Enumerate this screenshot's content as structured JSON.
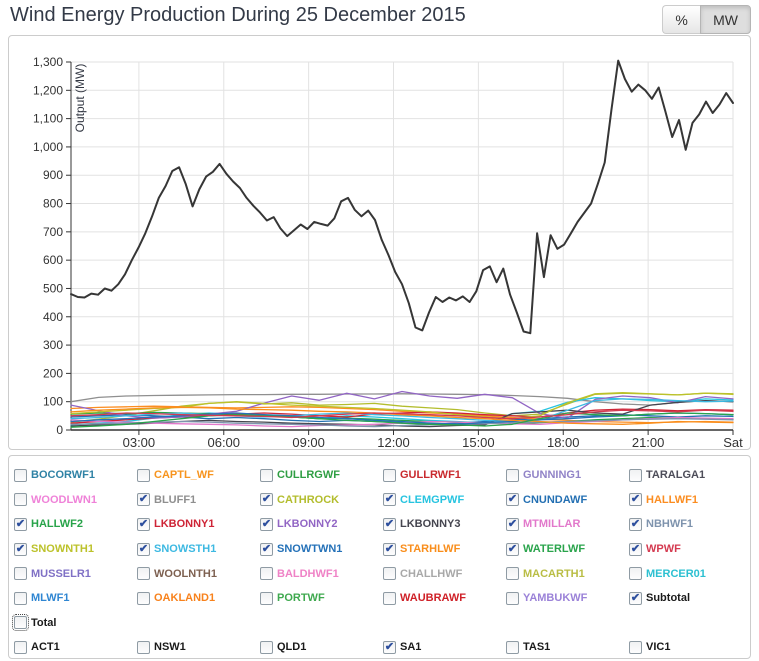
{
  "header": {
    "title": "Wind Energy Production During 25 December 2015",
    "unit_toggle": [
      {
        "label": "%",
        "active": false
      },
      {
        "label": "MW",
        "active": true
      }
    ]
  },
  "chart_data": {
    "type": "line",
    "title": "Wind Energy Production During 25 December 2015",
    "xlabel": "",
    "ylabel": "Output (MW)",
    "x_domain": [
      0.6,
      24.0
    ],
    "ylim": [
      0,
      1300
    ],
    "grid": true,
    "legend_position": "bottom-checkbox-grid",
    "colors": {
      "grid": "#e2e2e2",
      "axis": "#333333",
      "tick_label": "#333333",
      "axis_title": "#333843"
    },
    "x_ticks": [
      {
        "t": 3,
        "label": "03:00"
      },
      {
        "t": 6,
        "label": "06:00"
      },
      {
        "t": 9,
        "label": "09:00"
      },
      {
        "t": 12,
        "label": "12:00"
      },
      {
        "t": 15,
        "label": "15:00"
      },
      {
        "t": 18,
        "label": "18:00"
      },
      {
        "t": 21,
        "label": "21:00"
      },
      {
        "t": 24,
        "label": "Sat"
      }
    ],
    "y_tick_labels": [
      "0",
      "100",
      "200",
      "300",
      "400",
      "500",
      "600",
      "700",
      "800",
      "900",
      "1,000",
      "1,100",
      "1,200",
      "1,300"
    ],
    "series": [
      {
        "name": "BLUFF1",
        "color": "#8f8f8f",
        "width": 1.3,
        "values": [
          100,
          115,
          120,
          122,
          123,
          124,
          125,
          125,
          126,
          126,
          127,
          127,
          128,
          127,
          126,
          125,
          122,
          118,
          112,
          100,
          92,
          88,
          97,
          104,
          100
        ]
      },
      {
        "name": "CATHROCK",
        "color": "#b3bd2d",
        "width": 1.3,
        "values": [
          28,
          38,
          52,
          68,
          84,
          94,
          99,
          92,
          96,
          88,
          90,
          94,
          84,
          78,
          72,
          60,
          50,
          56,
          92,
          126,
          130,
          127,
          124,
          130,
          128
        ]
      },
      {
        "name": "CLEMGPWF",
        "color": "#27c4e0",
        "width": 1.3,
        "values": [
          18,
          24,
          30,
          42,
          54,
          60,
          56,
          50,
          46,
          40,
          50,
          46,
          40,
          34,
          30,
          24,
          58,
          66,
          98,
          114,
          110,
          104,
          100,
          110,
          106
        ]
      },
      {
        "name": "CNUNDAWF",
        "color": "#2470b3",
        "width": 1.3,
        "values": [
          46,
          50,
          54,
          50,
          46,
          40,
          44,
          40,
          34,
          30,
          34,
          30,
          26,
          20,
          24,
          30,
          36,
          40,
          46,
          50,
          54,
          50,
          46,
          50,
          48
        ]
      },
      {
        "name": "HALLWF1",
        "color": "#fb8d21",
        "width": 1.3,
        "values": [
          76,
          80,
          82,
          84,
          82,
          80,
          78,
          80,
          82,
          80,
          76,
          72,
          66,
          60,
          56,
          50,
          44,
          38,
          34,
          30,
          28,
          26,
          28,
          30,
          28
        ]
      },
      {
        "name": "HALLWF2",
        "color": "#27a349",
        "width": 1.3,
        "values": [
          56,
          60,
          58,
          62,
          60,
          58,
          54,
          50,
          46,
          40,
          42,
          38,
          34,
          30,
          28,
          24,
          22,
          26,
          30,
          36,
          40,
          44,
          42,
          40,
          38
        ]
      },
      {
        "name": "LKBONNY1",
        "color": "#ce2436",
        "width": 1.3,
        "values": [
          24,
          30,
          36,
          42,
          46,
          50,
          56,
          60,
          56,
          50,
          46,
          56,
          60,
          64,
          60,
          54,
          50,
          46,
          60,
          70,
          74,
          72,
          68,
          72,
          70
        ]
      },
      {
        "name": "LKBONNY2",
        "color": "#9165c4",
        "width": 1.3,
        "values": [
          88,
          68,
          50,
          42,
          46,
          56,
          66,
          95,
          120,
          105,
          130,
          110,
          136,
          120,
          112,
          126,
          114,
          58,
          42,
          108,
          120,
          114,
          96,
          118,
          110
        ]
      },
      {
        "name": "LKBONNY3",
        "color": "#45454f",
        "width": 1.3,
        "values": [
          14,
          18,
          20,
          24,
          30,
          34,
          30,
          28,
          24,
          22,
          20,
          18,
          14,
          12,
          16,
          18,
          58,
          64,
          70,
          60,
          56,
          88,
          98,
          104,
          100
        ]
      },
      {
        "name": "MTMILLAR",
        "color": "#e278cb",
        "width": 1.3,
        "values": [
          36,
          30,
          28,
          24,
          22,
          20,
          18,
          14,
          12,
          16,
          18,
          20,
          24,
          30,
          28,
          24,
          22,
          20,
          26,
          30,
          36,
          40,
          44,
          42,
          40
        ]
      },
      {
        "name": "NBHWF1",
        "color": "#7e93ad",
        "width": 1.3,
        "values": [
          20,
          22,
          24,
          28,
          30,
          28,
          24,
          22,
          20,
          18,
          14,
          12,
          16,
          18,
          20,
          22,
          26,
          28,
          30,
          32,
          36,
          38,
          40,
          38,
          36
        ]
      },
      {
        "name": "SNOWNTH1",
        "color": "#bcc22b",
        "width": 1.3,
        "values": [
          58,
          64,
          70,
          76,
          80,
          94,
          100,
          94,
          88,
          84,
          80,
          76,
          70,
          64,
          54,
          46,
          40,
          50,
          96,
          128,
          132,
          128,
          124,
          130,
          126
        ]
      },
      {
        "name": "SNOWSTH1",
        "color": "#3db9e2",
        "width": 1.3,
        "values": [
          40,
          44,
          50,
          56,
          60,
          54,
          50,
          46,
          50,
          56,
          60,
          54,
          50,
          44,
          40,
          34,
          30,
          36,
          70,
          104,
          110,
          108,
          104,
          100,
          102
        ]
      },
      {
        "name": "SNOWTWN1",
        "color": "#2471b8",
        "width": 1.3,
        "values": [
          30,
          36,
          40,
          46,
          50,
          56,
          60,
          54,
          50,
          44,
          40,
          34,
          30,
          24,
          20,
          26,
          30,
          36,
          40,
          46,
          50,
          56,
          60,
          58,
          54
        ]
      },
      {
        "name": "STARHLWF",
        "color": "#f98e1c",
        "width": 1.3,
        "values": [
          64,
          70,
          74,
          78,
          80,
          78,
          74,
          72,
          70,
          66,
          64,
          60,
          54,
          50,
          44,
          40,
          34,
          30,
          24,
          22,
          20,
          24,
          30,
          28,
          26
        ]
      },
      {
        "name": "WATERLWF",
        "color": "#2aa44c",
        "width": 1.3,
        "values": [
          10,
          14,
          20,
          30,
          40,
          50,
          54,
          50,
          46,
          40,
          34,
          30,
          24,
          20,
          18,
          14,
          20,
          40,
          60,
          54,
          50,
          56,
          60,
          58,
          54
        ]
      },
      {
        "name": "WPWF",
        "color": "#d43a50",
        "width": 1.3,
        "values": [
          50,
          54,
          60,
          58,
          54,
          52,
          50,
          48,
          44,
          50,
          56,
          60,
          58,
          54,
          50,
          44,
          40,
          46,
          54,
          64,
          70,
          68,
          64,
          70,
          66
        ]
      },
      {
        "name": "Subtotal",
        "color": "#363636",
        "width": 2,
        "values": [
          480,
          470,
          468,
          482,
          478,
          500,
          492,
          515,
          550,
          600,
          645,
          695,
          755,
          820,
          862,
          915,
          928,
          868,
          790,
          850,
          895,
          912,
          940,
          905,
          878,
          855,
          820,
          792,
          768,
          740,
          752,
          712,
          685,
          705,
          726,
          710,
          735,
          728,
          722,
          748,
          808,
          820,
          778,
          755,
          775,
          742,
          672,
          618,
          558,
          515,
          448,
          362,
          352,
          415,
          470,
          452,
          468,
          458,
          472,
          452,
          490,
          565,
          578,
          522,
          570,
          478,
          415,
          348,
          342,
          695,
          540,
          688,
          640,
          655,
          695,
          735,
          768,
          800,
          870,
          945,
          1130,
          1305,
          1240,
          1195,
          1220,
          1200,
          1170,
          1210,
          1125,
          1035,
          1095,
          990,
          1085,
          1115,
          1160,
          1120,
          1150,
          1190,
          1155
        ]
      }
    ]
  },
  "legend": {
    "farms": [
      {
        "label": "BOCORWF1",
        "color": "#2f82a5",
        "checked": false
      },
      {
        "label": "CAPTL_WF",
        "color": "#f7941e",
        "checked": false
      },
      {
        "label": "CULLRGWF",
        "color": "#2f9e43",
        "checked": false
      },
      {
        "label": "GULLRWF1",
        "color": "#c92a2e",
        "checked": false
      },
      {
        "label": "GUNNING1",
        "color": "#9183c7",
        "checked": false
      },
      {
        "label": "TARALGA1",
        "color": "#4d4d59",
        "checked": false
      },
      {
        "label": "WOODLWN1",
        "color": "#ef82d8",
        "checked": false
      },
      {
        "label": "BLUFF1",
        "color": "#8f8f8f",
        "checked": true
      },
      {
        "label": "CATHROCK",
        "color": "#b3bd2d",
        "checked": true
      },
      {
        "label": "CLEMGPWF",
        "color": "#27c4e0",
        "checked": true
      },
      {
        "label": "CNUNDAWF",
        "color": "#2470b3",
        "checked": true
      },
      {
        "label": "HALLWF1",
        "color": "#fb8d21",
        "checked": true
      },
      {
        "label": "HALLWF2",
        "color": "#27a349",
        "checked": true
      },
      {
        "label": "LKBONNY1",
        "color": "#ce2436",
        "checked": true
      },
      {
        "label": "LKBONNY2",
        "color": "#9165c4",
        "checked": true
      },
      {
        "label": "LKBONNY3",
        "color": "#45454f",
        "checked": true
      },
      {
        "label": "MTMILLAR",
        "color": "#e278cb",
        "checked": true
      },
      {
        "label": "NBHWF1",
        "color": "#7e93ad",
        "checked": true
      },
      {
        "label": "SNOWNTH1",
        "color": "#bcc22b",
        "checked": true
      },
      {
        "label": "SNOWSTH1",
        "color": "#3db9e2",
        "checked": true
      },
      {
        "label": "SNOWTWN1",
        "color": "#2471b8",
        "checked": true
      },
      {
        "label": "STARHLWF",
        "color": "#f98e1c",
        "checked": true
      },
      {
        "label": "WATERLWF",
        "color": "#2aa44c",
        "checked": true
      },
      {
        "label": "WPWF",
        "color": "#d43a50",
        "checked": true
      },
      {
        "label": "MUSSELR1",
        "color": "#7f70c5",
        "checked": false
      },
      {
        "label": "WOOLNTH1",
        "color": "#7d6050",
        "checked": false
      },
      {
        "label": "BALDHWF1",
        "color": "#ef82c6",
        "checked": false
      },
      {
        "label": "CHALLHWF",
        "color": "#a8a8a8",
        "checked": false
      },
      {
        "label": "MACARTH1",
        "color": "#b9bd44",
        "checked": false
      },
      {
        "label": "MERCER01",
        "color": "#2cc0d1",
        "checked": false
      },
      {
        "label": "MLWF1",
        "color": "#2f86d2",
        "checked": false
      },
      {
        "label": "OAKLAND1",
        "color": "#f8821c",
        "checked": false
      },
      {
        "label": "PORTWF",
        "color": "#3fa94f",
        "checked": false
      },
      {
        "label": "WAUBRAWF",
        "color": "#cf2128",
        "checked": false
      },
      {
        "label": "YAMBUKWF",
        "color": "#9b82d8",
        "checked": false
      },
      {
        "label": "Subtotal",
        "color": "#1a1a1a",
        "checked": true
      }
    ],
    "total": {
      "label": "Total",
      "color": "#1a1a1a",
      "checked": false,
      "focused": true
    },
    "regions": [
      {
        "label": "ACT1",
        "color": "#1a1a1a",
        "checked": false
      },
      {
        "label": "NSW1",
        "color": "#1a1a1a",
        "checked": false
      },
      {
        "label": "QLD1",
        "color": "#1a1a1a",
        "checked": false
      },
      {
        "label": "SA1",
        "color": "#1a1a1a",
        "checked": true
      },
      {
        "label": "TAS1",
        "color": "#1a1a1a",
        "checked": false
      },
      {
        "label": "VIC1",
        "color": "#1a1a1a",
        "checked": false
      }
    ]
  }
}
